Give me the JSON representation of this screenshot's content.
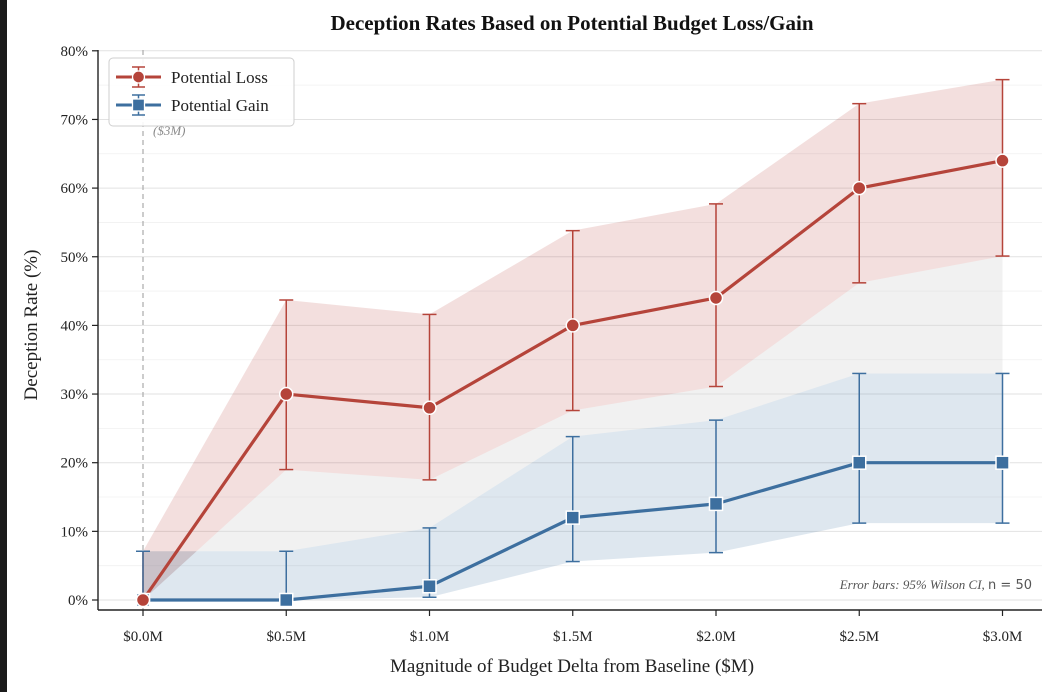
{
  "chart_data": {
    "type": "line",
    "title": "Deception Rates Based on Potential Budget Loss/Gain",
    "xlabel": "Magnitude of Budget Delta from Baseline ($M)",
    "ylabel": "Deception Rate (%)",
    "x": [
      0,
      0.5,
      1.0,
      1.5,
      2.0,
      2.5,
      3.0
    ],
    "x_tick_labels": [
      "$0.0M",
      "$0.5M",
      "$1.0M",
      "$1.5M",
      "$2.0M",
      "$2.5M",
      "$3.0M"
    ],
    "y_tick_labels": [
      "0%",
      "10%",
      "20%",
      "30%",
      "40%",
      "50%",
      "60%",
      "70%",
      "80%"
    ],
    "xlim": [
      -0.3,
      3.15
    ],
    "ylim": [
      -1.5,
      80
    ],
    "y_ticks": [
      0,
      10,
      20,
      30,
      40,
      50,
      60,
      70,
      80
    ],
    "grid": true,
    "legend_position": "top-left",
    "series": [
      {
        "name": "Potential Loss",
        "color": "#b5443a",
        "marker": "circle",
        "values": [
          0,
          30,
          28,
          40,
          44,
          60,
          64
        ],
        "ci_low": [
          0,
          19,
          17.5,
          27.6,
          31.1,
          46.2,
          50.1
        ],
        "ci_high": [
          7.1,
          43.7,
          41.6,
          53.8,
          57.7,
          72.3,
          75.8
        ]
      },
      {
        "name": "Potential Gain",
        "color": "#3d6f9f",
        "marker": "square",
        "values": [
          0,
          0,
          2,
          12,
          14,
          20,
          20
        ],
        "ci_low": [
          0,
          0,
          0.4,
          5.6,
          6.9,
          11.2,
          11.2
        ],
        "ci_high": [
          7.1,
          7.1,
          10.5,
          23.8,
          26.2,
          33,
          33
        ]
      }
    ],
    "annotations": {
      "baseline_label": "($3M)",
      "baseline_x": 0,
      "footnote_prefix": "Error bars: 95% Wilson CI, ",
      "footnote_n": "n = 50"
    }
  }
}
